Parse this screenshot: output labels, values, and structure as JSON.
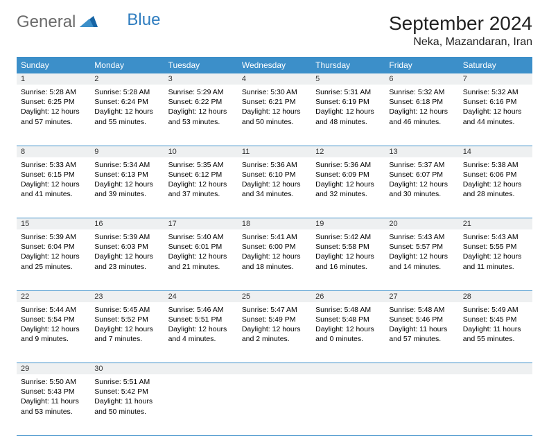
{
  "logo": {
    "text1": "General",
    "text2": "Blue"
  },
  "title": "September 2024",
  "location": "Neka, Mazandaran, Iran",
  "colors": {
    "header_bg": "#3c8fc9",
    "daynum_bg": "#eef0f1",
    "rule": "#3c8fc9",
    "logo_gray": "#6b6b6b",
    "logo_blue": "#2f7dbf"
  },
  "weekdays": [
    "Sunday",
    "Monday",
    "Tuesday",
    "Wednesday",
    "Thursday",
    "Friday",
    "Saturday"
  ],
  "weeks": [
    [
      {
        "n": "1",
        "sr": "5:28 AM",
        "ss": "6:25 PM",
        "dl": "12 hours and 57 minutes."
      },
      {
        "n": "2",
        "sr": "5:28 AM",
        "ss": "6:24 PM",
        "dl": "12 hours and 55 minutes."
      },
      {
        "n": "3",
        "sr": "5:29 AM",
        "ss": "6:22 PM",
        "dl": "12 hours and 53 minutes."
      },
      {
        "n": "4",
        "sr": "5:30 AM",
        "ss": "6:21 PM",
        "dl": "12 hours and 50 minutes."
      },
      {
        "n": "5",
        "sr": "5:31 AM",
        "ss": "6:19 PM",
        "dl": "12 hours and 48 minutes."
      },
      {
        "n": "6",
        "sr": "5:32 AM",
        "ss": "6:18 PM",
        "dl": "12 hours and 46 minutes."
      },
      {
        "n": "7",
        "sr": "5:32 AM",
        "ss": "6:16 PM",
        "dl": "12 hours and 44 minutes."
      }
    ],
    [
      {
        "n": "8",
        "sr": "5:33 AM",
        "ss": "6:15 PM",
        "dl": "12 hours and 41 minutes."
      },
      {
        "n": "9",
        "sr": "5:34 AM",
        "ss": "6:13 PM",
        "dl": "12 hours and 39 minutes."
      },
      {
        "n": "10",
        "sr": "5:35 AM",
        "ss": "6:12 PM",
        "dl": "12 hours and 37 minutes."
      },
      {
        "n": "11",
        "sr": "5:36 AM",
        "ss": "6:10 PM",
        "dl": "12 hours and 34 minutes."
      },
      {
        "n": "12",
        "sr": "5:36 AM",
        "ss": "6:09 PM",
        "dl": "12 hours and 32 minutes."
      },
      {
        "n": "13",
        "sr": "5:37 AM",
        "ss": "6:07 PM",
        "dl": "12 hours and 30 minutes."
      },
      {
        "n": "14",
        "sr": "5:38 AM",
        "ss": "6:06 PM",
        "dl": "12 hours and 28 minutes."
      }
    ],
    [
      {
        "n": "15",
        "sr": "5:39 AM",
        "ss": "6:04 PM",
        "dl": "12 hours and 25 minutes."
      },
      {
        "n": "16",
        "sr": "5:39 AM",
        "ss": "6:03 PM",
        "dl": "12 hours and 23 minutes."
      },
      {
        "n": "17",
        "sr": "5:40 AM",
        "ss": "6:01 PM",
        "dl": "12 hours and 21 minutes."
      },
      {
        "n": "18",
        "sr": "5:41 AM",
        "ss": "6:00 PM",
        "dl": "12 hours and 18 minutes."
      },
      {
        "n": "19",
        "sr": "5:42 AM",
        "ss": "5:58 PM",
        "dl": "12 hours and 16 minutes."
      },
      {
        "n": "20",
        "sr": "5:43 AM",
        "ss": "5:57 PM",
        "dl": "12 hours and 14 minutes."
      },
      {
        "n": "21",
        "sr": "5:43 AM",
        "ss": "5:55 PM",
        "dl": "12 hours and 11 minutes."
      }
    ],
    [
      {
        "n": "22",
        "sr": "5:44 AM",
        "ss": "5:54 PM",
        "dl": "12 hours and 9 minutes."
      },
      {
        "n": "23",
        "sr": "5:45 AM",
        "ss": "5:52 PM",
        "dl": "12 hours and 7 minutes."
      },
      {
        "n": "24",
        "sr": "5:46 AM",
        "ss": "5:51 PM",
        "dl": "12 hours and 4 minutes."
      },
      {
        "n": "25",
        "sr": "5:47 AM",
        "ss": "5:49 PM",
        "dl": "12 hours and 2 minutes."
      },
      {
        "n": "26",
        "sr": "5:48 AM",
        "ss": "5:48 PM",
        "dl": "12 hours and 0 minutes."
      },
      {
        "n": "27",
        "sr": "5:48 AM",
        "ss": "5:46 PM",
        "dl": "11 hours and 57 minutes."
      },
      {
        "n": "28",
        "sr": "5:49 AM",
        "ss": "5:45 PM",
        "dl": "11 hours and 55 minutes."
      }
    ],
    [
      {
        "n": "29",
        "sr": "5:50 AM",
        "ss": "5:43 PM",
        "dl": "11 hours and 53 minutes."
      },
      {
        "n": "30",
        "sr": "5:51 AM",
        "ss": "5:42 PM",
        "dl": "11 hours and 50 minutes."
      },
      null,
      null,
      null,
      null,
      null
    ]
  ],
  "labels": {
    "sunrise": "Sunrise:",
    "sunset": "Sunset:",
    "daylight": "Daylight:"
  }
}
